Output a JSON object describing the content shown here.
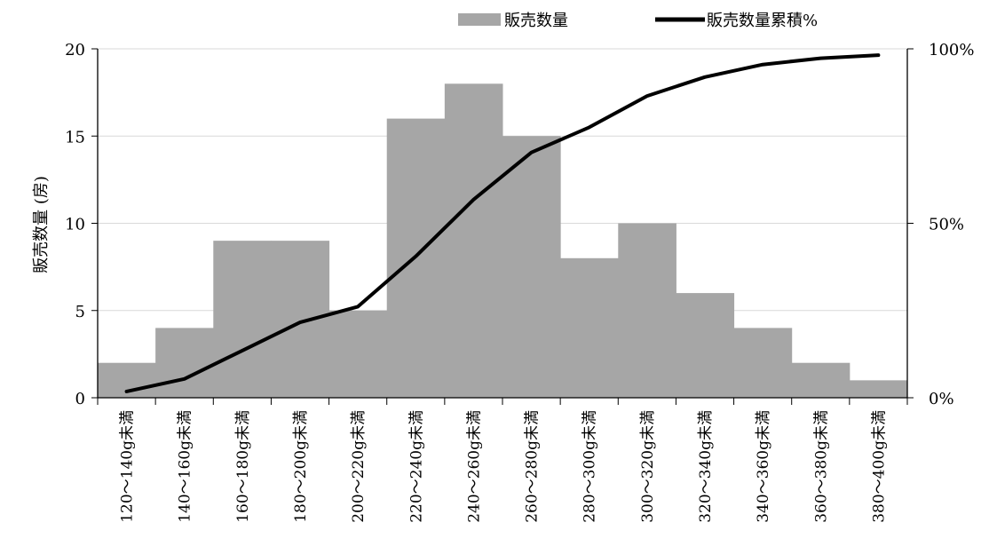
{
  "chart_data": {
    "type": "bar",
    "categories": [
      "120～140g未満",
      "140～160g未満",
      "160～180g未満",
      "180～200g未満",
      "200～220g未満",
      "220～240g未満",
      "240～260g未満",
      "260～280g未満",
      "280～300g未満",
      "300～320g未満",
      "320～340g未満",
      "340～360g未満",
      "360～380g未満",
      "380～400g未満"
    ],
    "series": [
      {
        "name": "販売数量",
        "type": "bar",
        "axis": "left",
        "color": "#a6a6a6",
        "values": [
          2,
          4,
          9,
          9,
          5,
          16,
          18,
          15,
          8,
          10,
          6,
          4,
          2,
          1
        ]
      },
      {
        "name": "販売数量累積%",
        "type": "line",
        "axis": "right",
        "color": "#000000",
        "values": [
          1.8,
          5.4,
          13.5,
          21.6,
          26.1,
          40.5,
          56.8,
          70.3,
          77.5,
          86.5,
          91.9,
          95.5,
          97.3,
          98.2
        ]
      }
    ],
    "title": "",
    "xlabel": "",
    "ylabel": "販売数量 (房)",
    "ylim": [
      0,
      20
    ],
    "yticks": [
      "0",
      "5",
      "10",
      "15",
      "20"
    ],
    "y2lim": [
      0,
      100
    ],
    "y2ticks": [
      "0%",
      "50%",
      "100%"
    ],
    "grid": true,
    "legend": "top-right"
  }
}
